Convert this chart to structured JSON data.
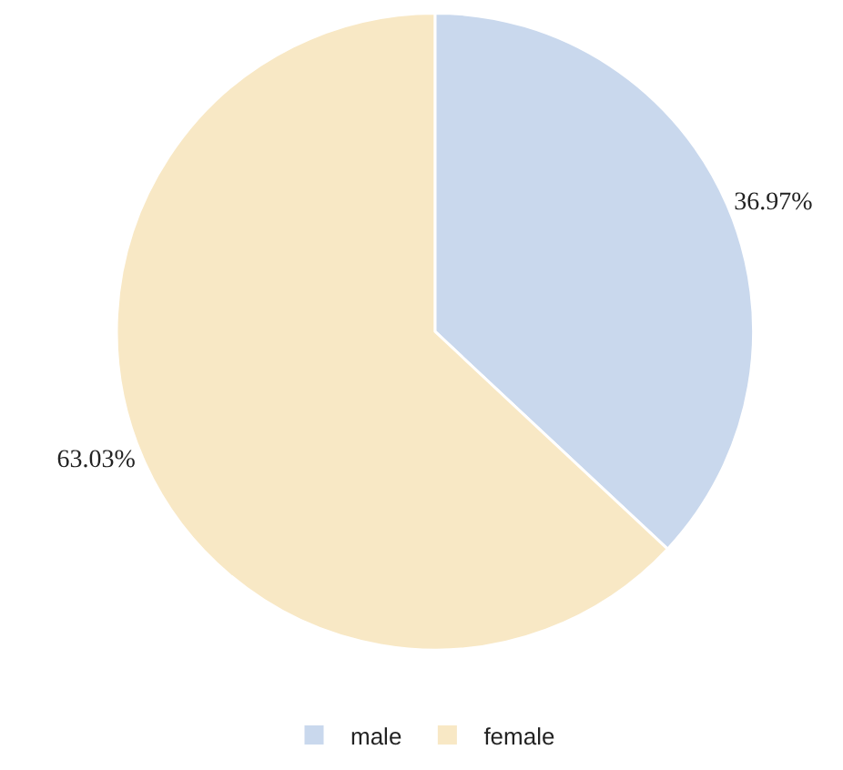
{
  "chart_data": {
    "type": "pie",
    "categories": [
      "male",
      "female"
    ],
    "values": [
      36.97,
      63.03
    ],
    "value_labels": [
      "36.97%",
      "63.03%"
    ],
    "colors": [
      "#c9d8ed",
      "#f8e8c5"
    ],
    "legend": "bottom"
  }
}
